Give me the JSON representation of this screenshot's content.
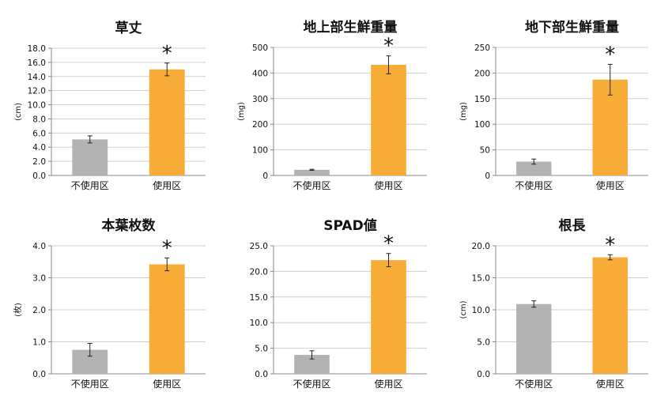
{
  "colors": {
    "control": "#b3b3b3",
    "treated": "#f8ac38",
    "grid": "#cfcfcf",
    "axis": "#888888"
  },
  "marker": "*",
  "chart_data": [
    {
      "type": "bar",
      "title": "草丈",
      "ylabel": "(cm)",
      "categories": [
        "不使用区",
        "使用区"
      ],
      "values": [
        5.1,
        15.0
      ],
      "errors": [
        0.5,
        0.9
      ],
      "ylim": [
        0,
        18
      ],
      "yticks": [
        0,
        2,
        4,
        6,
        8,
        10,
        12,
        14,
        16,
        18
      ],
      "yticklabels": [
        "0.0",
        "2.0",
        "4.0",
        "6.0",
        "8.0",
        "10.0",
        "12.0",
        "14.0",
        "16.0",
        "18.0"
      ],
      "significant": [
        false,
        true
      ],
      "grid": true
    },
    {
      "type": "bar",
      "title": "地上部生鮮重量",
      "ylabel": "(mg)",
      "categories": [
        "不使用区",
        "使用区"
      ],
      "values": [
        22,
        432
      ],
      "errors": [
        2,
        35
      ],
      "ylim": [
        0,
        500
      ],
      "yticks": [
        0,
        100,
        200,
        300,
        400,
        500
      ],
      "yticklabels": [
        "0",
        "100",
        "200",
        "300",
        "400",
        "500"
      ],
      "significant": [
        false,
        true
      ],
      "grid": true
    },
    {
      "type": "bar",
      "title": "地下部生鮮重量",
      "ylabel": "(mg)",
      "categories": [
        "不使用区",
        "使用区"
      ],
      "values": [
        27,
        187
      ],
      "errors": [
        5,
        30
      ],
      "ylim": [
        0,
        250
      ],
      "yticks": [
        0,
        50,
        100,
        150,
        200,
        250
      ],
      "yticklabels": [
        "0",
        "50",
        "100",
        "150",
        "200",
        "250"
      ],
      "significant": [
        false,
        true
      ],
      "grid": true
    },
    {
      "type": "bar",
      "title": "本葉枚数",
      "ylabel": "(枚)",
      "categories": [
        "不使用区",
        "使用区"
      ],
      "values": [
        0.75,
        3.42
      ],
      "errors": [
        0.2,
        0.2
      ],
      "ylim": [
        0,
        4
      ],
      "yticks": [
        0,
        1,
        2,
        3,
        4
      ],
      "yticklabels": [
        "0.0",
        "1.0",
        "2.0",
        "3.0",
        "4.0"
      ],
      "significant": [
        false,
        true
      ],
      "grid": true
    },
    {
      "type": "bar",
      "title": "SPAD値",
      "ylabel": "",
      "categories": [
        "不使用区",
        "使用区"
      ],
      "values": [
        3.7,
        22.2
      ],
      "errors": [
        0.8,
        1.3
      ],
      "ylim": [
        0,
        25
      ],
      "yticks": [
        0,
        5,
        10,
        15,
        20,
        25
      ],
      "yticklabels": [
        "0.0",
        "5.0",
        "10.0",
        "15.0",
        "20.0",
        "25.0"
      ],
      "significant": [
        false,
        true
      ],
      "grid": true
    },
    {
      "type": "bar",
      "title": "根長",
      "ylabel": "(cm)",
      "categories": [
        "不使用区",
        "使用区"
      ],
      "values": [
        10.9,
        18.2
      ],
      "errors": [
        0.5,
        0.4
      ],
      "ylim": [
        0,
        20
      ],
      "yticks": [
        0,
        5,
        10,
        15,
        20
      ],
      "yticklabels": [
        "0.0",
        "5.0",
        "10.0",
        "15.0",
        "20.0"
      ],
      "significant": [
        false,
        true
      ],
      "grid": true
    }
  ]
}
